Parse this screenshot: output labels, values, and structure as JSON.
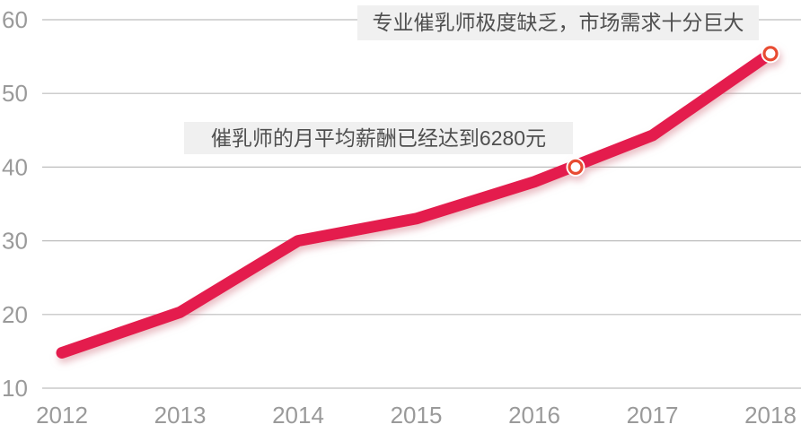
{
  "chart_data": {
    "type": "line",
    "title": "",
    "xlabel": "",
    "ylabel": "",
    "x": [
      2012,
      2013,
      2014,
      2015,
      2016,
      2017,
      2018
    ],
    "values": [
      14.8,
      20.3,
      30.0,
      33.0,
      38.0,
      44.3,
      55.4
    ],
    "ylim": [
      10,
      60
    ],
    "yticks": [
      10,
      20,
      30,
      40,
      50,
      60
    ],
    "xtick_labels": [
      "2012",
      "2013",
      "2014",
      "2015",
      "2016",
      "2017",
      "2018"
    ],
    "grid": "horizontal",
    "legend": "none",
    "line_color": "#e41c4e",
    "shadow_color": "#d98a96",
    "grid_color": "#bdbdbd",
    "tick_color": "#9a9a9a",
    "marker_fill": "#ffffff",
    "marker_ring": "#e84c33",
    "markers": [
      {
        "x": 2016.35,
        "value": 40
      },
      {
        "x": 2018,
        "value": 55.4
      }
    ],
    "annotations": [
      {
        "id": "market-demand",
        "text": "专业催乳师极度缺乏，市场需求十分巨大"
      },
      {
        "id": "average-salary",
        "text": "催乳师的月平均薪酬已经达到6280元"
      }
    ]
  }
}
